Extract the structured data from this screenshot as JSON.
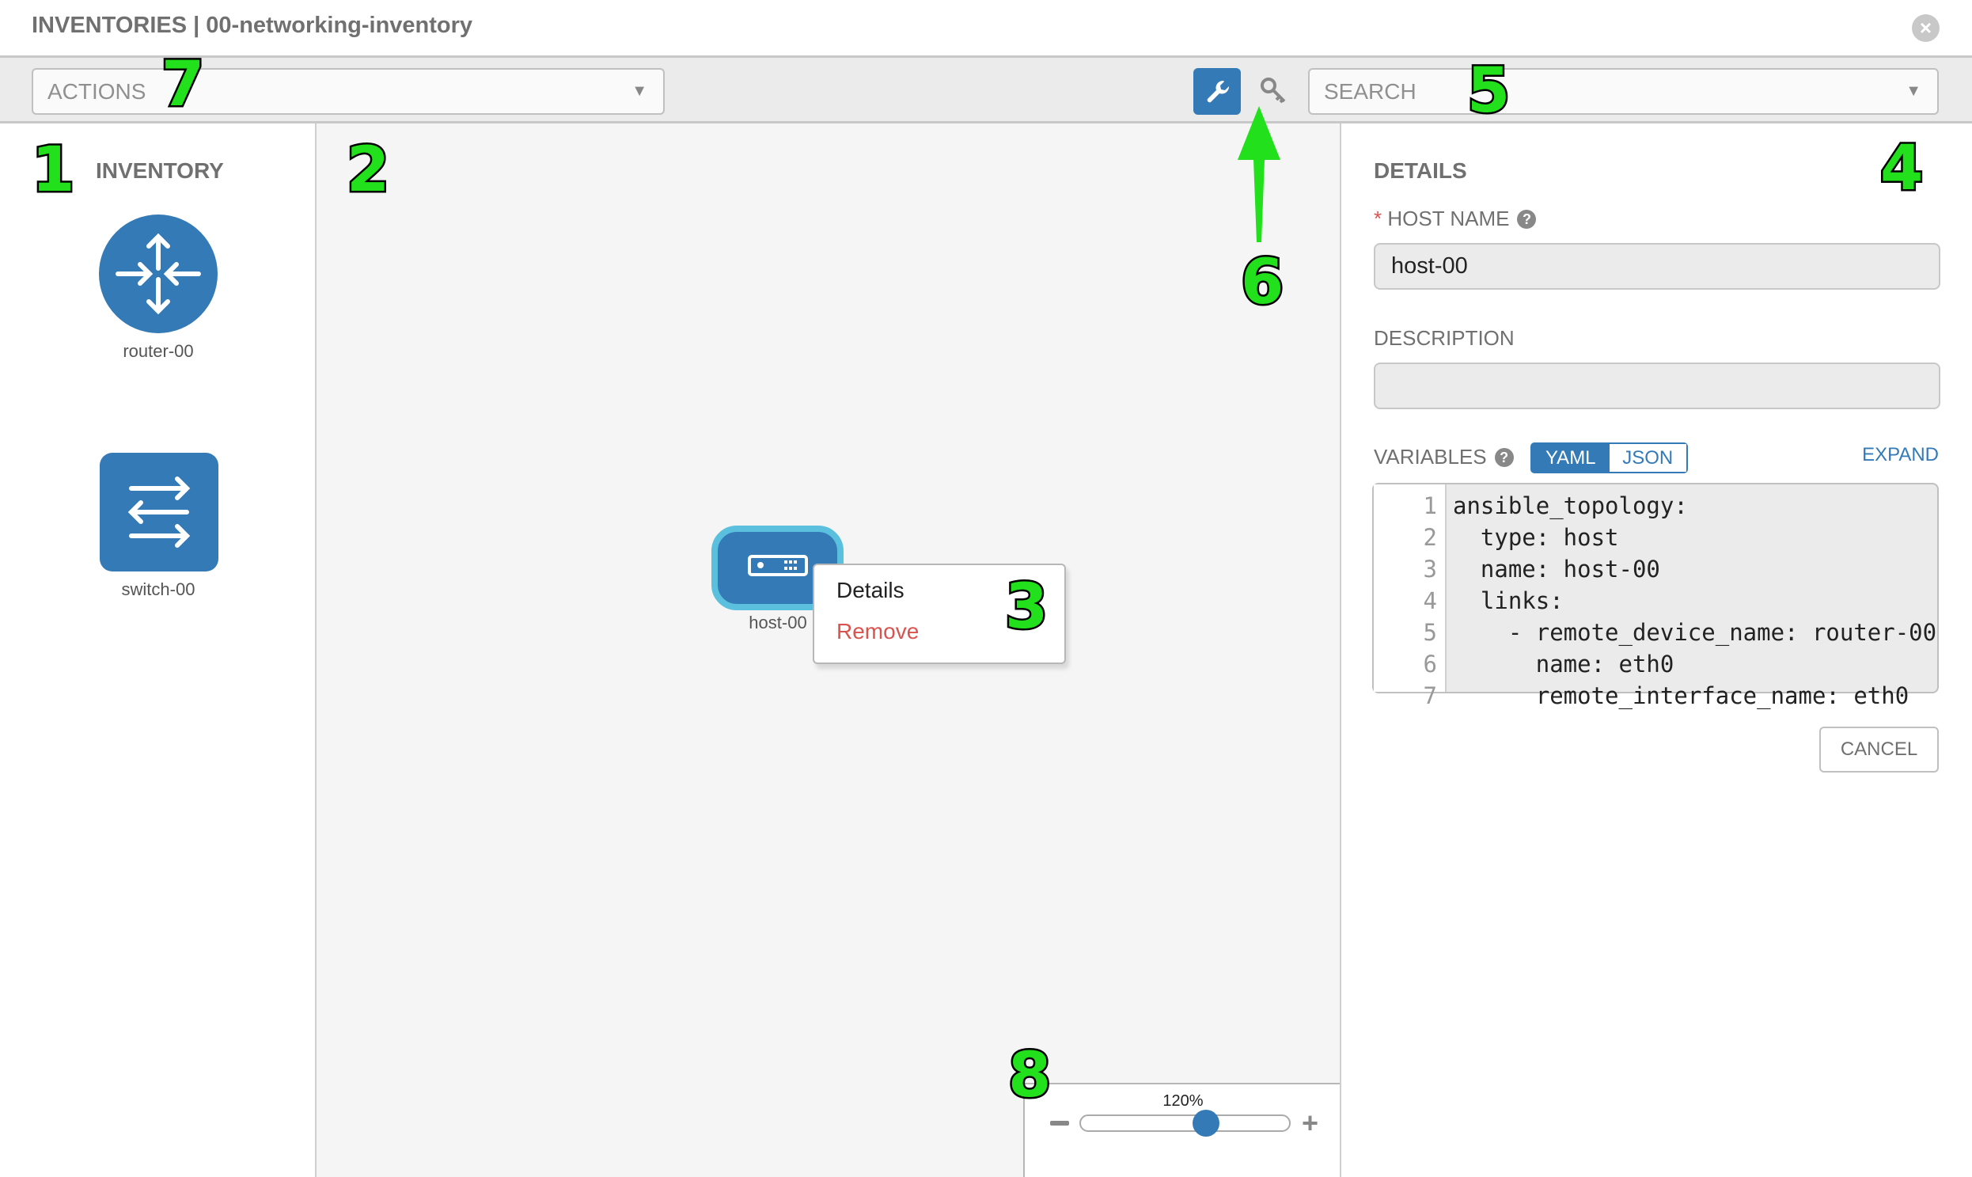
{
  "header": {
    "title": "INVENTORIES | 00-networking-inventory",
    "close_icon": "close-circle-icon"
  },
  "toolbar": {
    "actions_label": "ACTIONS",
    "search_placeholder": "SEARCH",
    "wrench_icon": "wrench-icon",
    "key_icon": "key-icon"
  },
  "inventory": {
    "title": "INVENTORY",
    "items": [
      {
        "label": "router-00",
        "icon": "router-icon"
      },
      {
        "label": "switch-00",
        "icon": "switch-icon"
      }
    ]
  },
  "canvas": {
    "node": {
      "label": "host-00",
      "icon": "host-icon"
    },
    "context_menu": {
      "items": [
        {
          "label": "Details"
        },
        {
          "label": "Remove"
        }
      ]
    }
  },
  "details": {
    "title": "DETAILS",
    "host_name_label": "HOST NAME",
    "required_mark": "*",
    "host_name_value": "host-00",
    "description_label": "DESCRIPTION",
    "description_value": "",
    "variables_label": "VARIABLES",
    "yaml_label": "YAML",
    "json_label": "JSON",
    "active_format": "YAML",
    "expand_label": "EXPAND",
    "code_lines": [
      {
        "n": "1",
        "text": "ansible_topology:"
      },
      {
        "n": "2",
        "text": "  type: host"
      },
      {
        "n": "3",
        "text": "  name: host-00"
      },
      {
        "n": "4",
        "text": "  links:"
      },
      {
        "n": "5",
        "text": "    - remote_device_name: router-00"
      },
      {
        "n": "6",
        "text": "      name: eth0"
      },
      {
        "n": "7",
        "text": "      remote_interface_name: eth0"
      }
    ],
    "cancel_label": "CANCEL"
  },
  "zoom": {
    "label": "120%",
    "value_percent": 120,
    "slider_fraction": 0.6
  },
  "annotations": [
    "1",
    "2",
    "3",
    "4",
    "5",
    "6",
    "7",
    "8"
  ],
  "colors": {
    "accent": "#337ab7",
    "danger": "#d9534f",
    "node_highlight": "#5bc0de",
    "annotation": "#22e01c"
  }
}
